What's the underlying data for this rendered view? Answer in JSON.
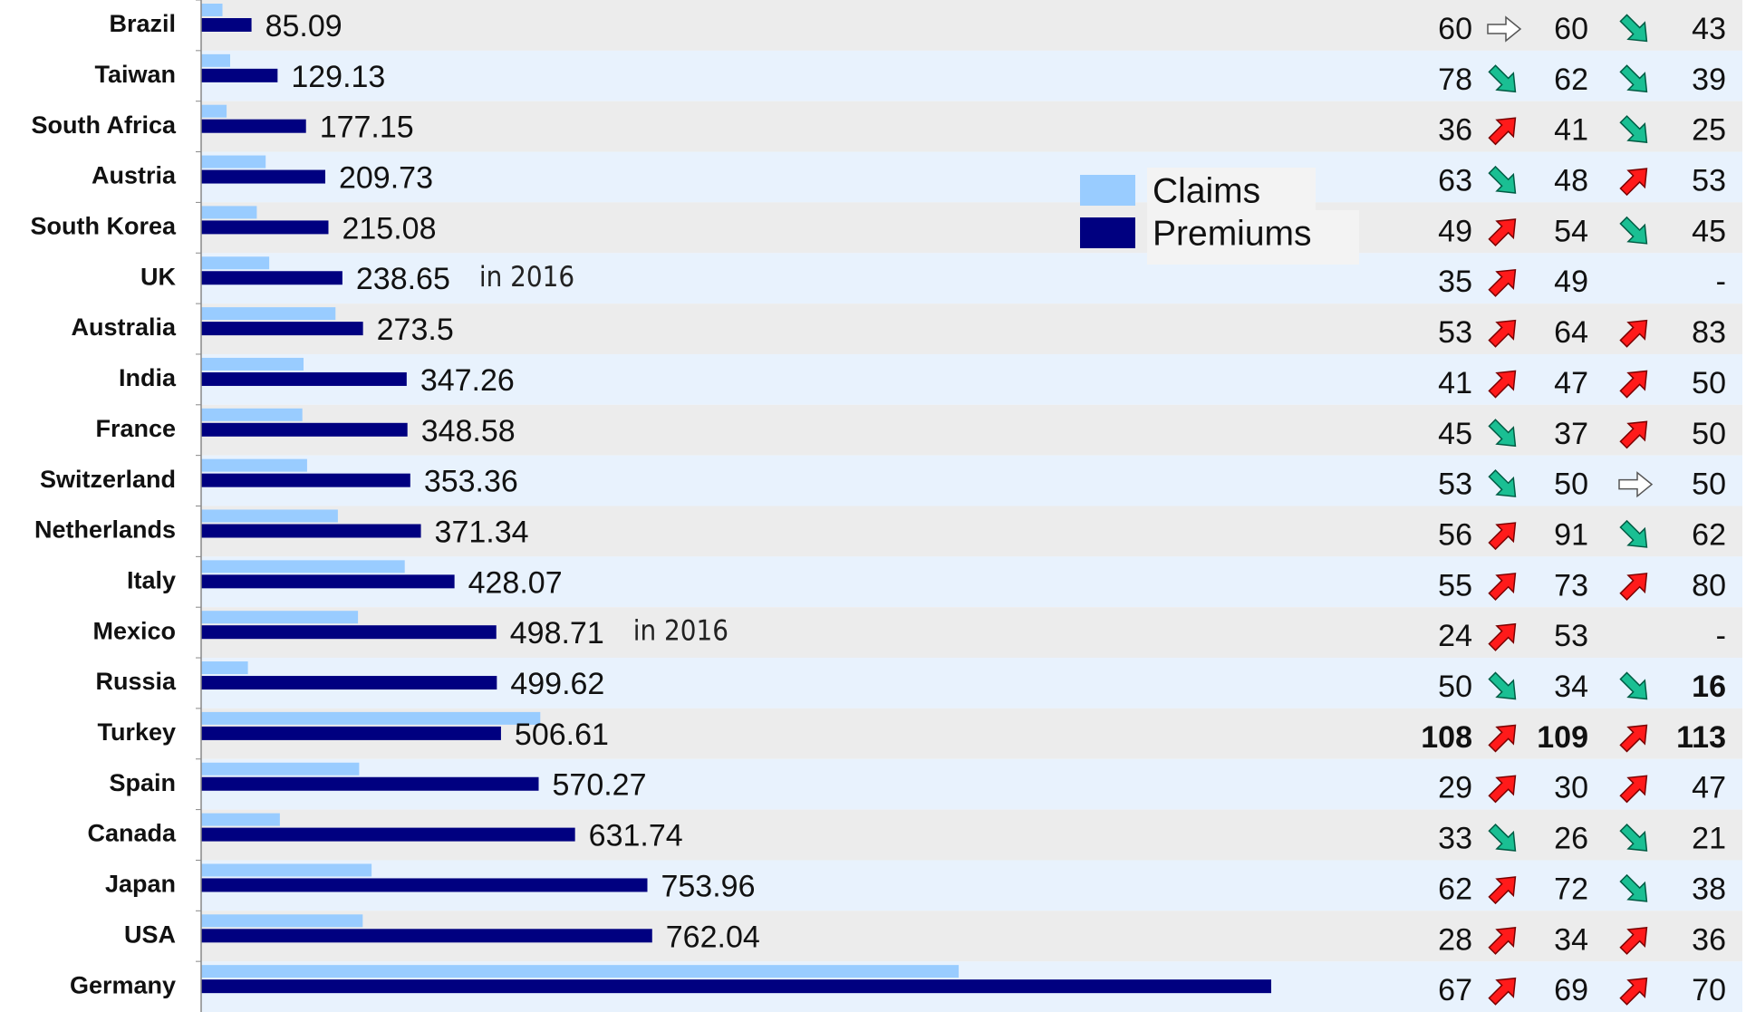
{
  "chart_data": {
    "type": "barh",
    "categories": [
      "Brazil",
      "Taiwan",
      "South Africa",
      "Austria",
      "South Korea",
      "UK",
      "Australia",
      "India",
      "France",
      "Switzerland",
      "Netherlands",
      "Italy",
      "Mexico",
      "Russia",
      "Turkey",
      "Spain",
      "Canada",
      "Japan",
      "USA",
      "Germany"
    ],
    "series": [
      {
        "name": "Claims",
        "color": "#99ccff",
        "values": [
          36,
          49,
          43,
          109,
          94,
          115,
          227,
          173,
          171,
          179,
          231,
          344,
          265,
          79,
          573,
          267,
          133,
          288,
          273,
          1280
        ]
      },
      {
        "name": "Premiums",
        "color": "#000080",
        "values": [
          85.09,
          129.13,
          177.15,
          209.73,
          215.08,
          238.65,
          273.5,
          347.26,
          348.58,
          353.36,
          371.34,
          428.07,
          498.71,
          499.62,
          506.61,
          570.27,
          631.74,
          753.96,
          762.04,
          1808
        ],
        "value_labels": [
          "85.09",
          "129.13",
          "177.15",
          "209.73",
          "215.08",
          "238.65",
          "273.5",
          "347.26",
          "348.58",
          "353.36",
          "371.34",
          "428.07",
          "498.71",
          "499.62",
          "506.61",
          "570.27",
          "631.74",
          "753.96",
          "762.04",
          null
        ]
      }
    ],
    "xlim": [
      0,
      1808
    ],
    "annotations": [
      {
        "category": "UK",
        "text": "in 2016"
      },
      {
        "category": "Mexico",
        "text": "in 2016"
      }
    ],
    "columns": [
      [
        60,
        78,
        36,
        63,
        49,
        35,
        53,
        41,
        45,
        53,
        56,
        55,
        24,
        50,
        108,
        29,
        33,
        62,
        28,
        67
      ],
      [
        60,
        62,
        41,
        48,
        54,
        49,
        64,
        47,
        37,
        50,
        91,
        73,
        53,
        34,
        109,
        30,
        26,
        72,
        34,
        69
      ],
      [
        43,
        39,
        25,
        53,
        45,
        "-",
        83,
        50,
        50,
        50,
        62,
        80,
        "-",
        16,
        113,
        47,
        21,
        38,
        36,
        70
      ]
    ],
    "bold_rows": [
      "Turkey"
    ],
    "bold_cells": [
      {
        "category": "Russia",
        "column": 2
      }
    ]
  }
}
